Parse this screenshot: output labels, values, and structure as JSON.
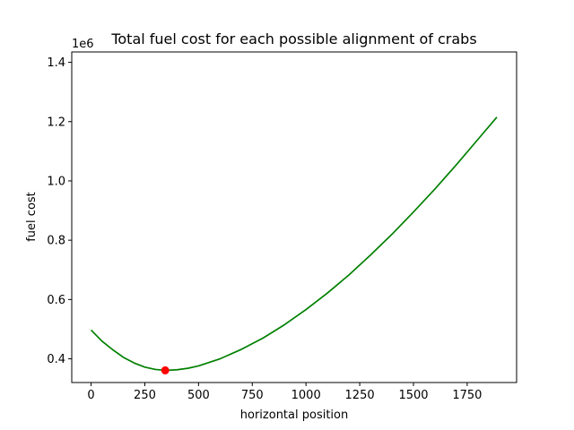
{
  "chart_data": {
    "type": "line",
    "title": "Total fuel cost for each possible alignment of crabs",
    "xlabel": "horizontal position",
    "ylabel": "fuel cost",
    "y_offset_label": "1e6",
    "y_scale": 1000000,
    "xlim": [
      -90,
      1980
    ],
    "ylim": [
      320000,
      1435000
    ],
    "x_ticks": [
      0,
      250,
      500,
      750,
      1000,
      1250,
      1500,
      1750
    ],
    "y_ticks": [
      400000,
      600000,
      800000,
      1000000,
      1200000,
      1400000
    ],
    "x_tick_labels": [
      "0",
      "250",
      "500",
      "750",
      "1000",
      "1250",
      "1500",
      "1750"
    ],
    "y_tick_labels": [
      "0.4",
      "0.6",
      "0.8",
      "1.0",
      "1.2",
      "1.4"
    ],
    "grid": false,
    "series": [
      {
        "color": "#008000",
        "x": [
          0,
          50,
          100,
          150,
          200,
          250,
          300,
          345,
          400,
          450,
          500,
          600,
          700,
          800,
          900,
          1000,
          1100,
          1200,
          1300,
          1400,
          1500,
          1600,
          1700,
          1800,
          1888
        ],
        "y": [
          497000,
          460000,
          431000,
          405000,
          386000,
          372000,
          364000,
          361000,
          363000,
          368000,
          376000,
          400000,
          432000,
          470000,
          515000,
          566000,
          622000,
          683000,
          750000,
          820000,
          895000,
          973000,
          1055000,
          1140000,
          1215000
        ]
      }
    ],
    "highlight_point": {
      "x": 345,
      "y": 361000,
      "color": "#ff0000"
    }
  }
}
